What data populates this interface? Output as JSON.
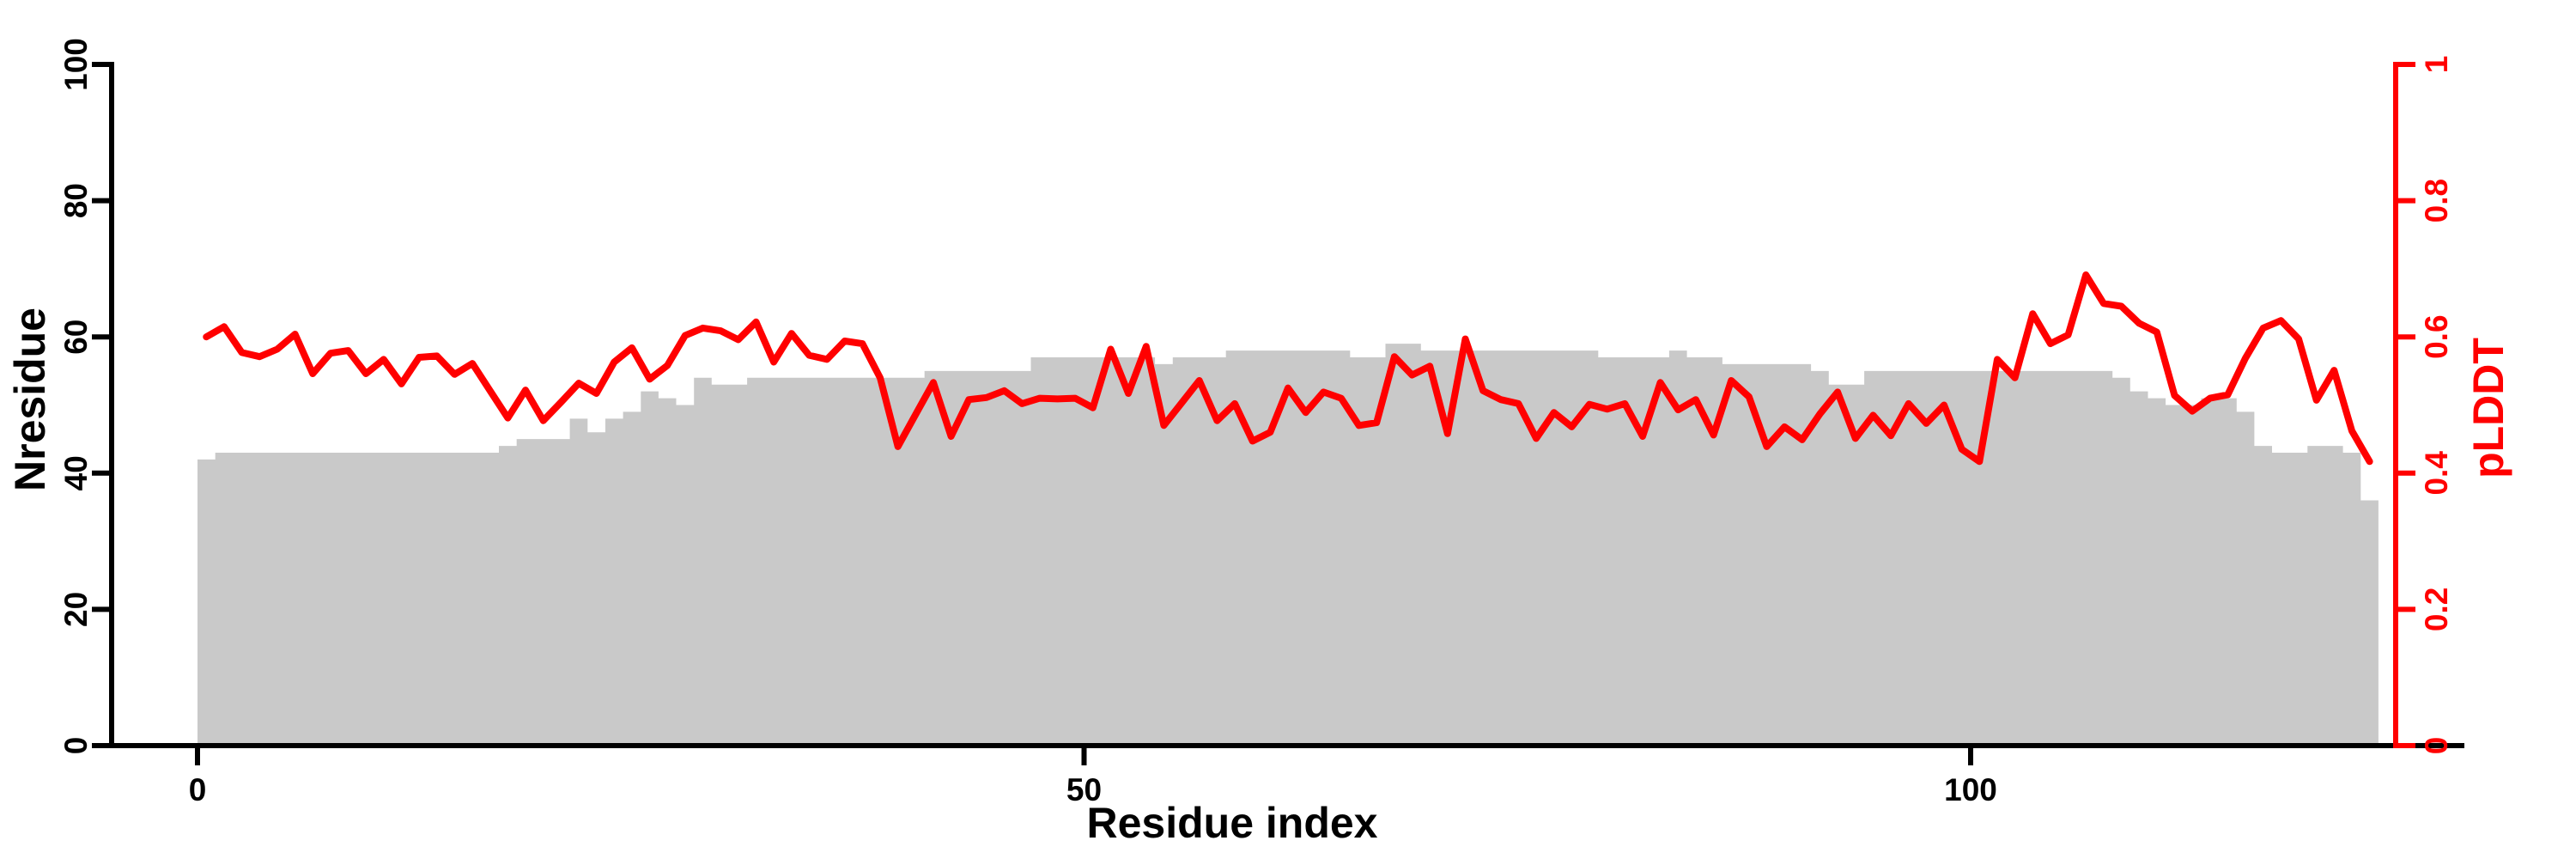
{
  "figure": {
    "background": "#ffffff"
  },
  "chart_data": {
    "type": "bar+line",
    "title": "",
    "grid": false,
    "legend": "none",
    "x_axis": {
      "label": "Residue index",
      "tick_values": [
        0,
        50,
        100
      ],
      "tick_labels": [
        "0",
        "50",
        "100"
      ],
      "color": "#000000"
    },
    "y_axis_left": {
      "label": "Nresidue",
      "tick_values": [
        0,
        20,
        40,
        60,
        80,
        100
      ],
      "tick_labels": [
        "0",
        "20",
        "40",
        "60",
        "80",
        "100"
      ],
      "range": [
        0,
        100
      ],
      "color": "#000000"
    },
    "y_axis_right": {
      "label": "pLDDT",
      "tick_values": [
        0,
        0.2,
        0.4,
        0.6,
        0.8,
        1
      ],
      "tick_labels": [
        "0",
        "0.2",
        "0.4",
        "0.6",
        "0.8",
        "1"
      ],
      "range": [
        0,
        1
      ],
      "color": "#ff0000"
    },
    "bar_series": {
      "name": "Nresidue",
      "axis": "left",
      "color": "#c9c9c9",
      "first_residue_index": 0,
      "values": [
        42,
        43,
        43,
        43,
        43,
        43,
        43,
        43,
        43,
        43,
        43,
        43,
        43,
        43,
        43,
        43,
        43,
        44,
        45,
        45,
        45,
        48,
        46,
        48,
        49,
        52,
        51,
        50,
        54,
        53,
        53,
        54,
        54,
        54,
        54,
        54,
        54,
        54,
        54,
        54,
        54,
        55,
        55,
        55,
        55,
        55,
        55,
        57,
        57,
        57,
        57,
        57,
        57,
        57,
        56,
        57,
        57,
        57,
        58,
        58,
        58,
        58,
        58,
        58,
        58,
        57,
        57,
        59,
        59,
        58,
        58,
        58,
        58,
        58,
        58,
        58,
        58,
        58,
        58,
        57,
        57,
        57,
        57,
        58,
        57,
        57,
        56,
        56,
        56,
        56,
        56,
        55,
        53,
        53,
        55,
        55,
        55,
        55,
        55,
        55,
        55,
        55,
        55,
        55,
        55,
        55,
        55,
        55,
        54,
        52,
        51,
        50,
        50,
        51,
        51,
        49,
        44,
        43,
        43,
        44,
        44,
        43,
        36
      ]
    },
    "line_series": {
      "name": "pLDDT",
      "axis": "right",
      "color": "#ff0000",
      "x_offset": 0.5,
      "values": [
        0.6,
        0.615,
        0.577,
        0.571,
        0.582,
        0.604,
        0.546,
        0.576,
        0.58,
        0.546,
        0.567,
        0.531,
        0.57,
        0.572,
        0.545,
        0.561,
        0.521,
        0.481,
        0.522,
        0.477,
        0.504,
        0.532,
        0.517,
        0.563,
        0.584,
        0.538,
        0.558,
        0.602,
        0.613,
        0.609,
        0.596,
        0.622,
        0.563,
        0.605,
        0.573,
        0.567,
        0.594,
        0.59,
        0.54,
        0.439,
        0.486,
        0.533,
        0.454,
        0.508,
        0.511,
        0.521,
        0.502,
        0.51,
        0.509,
        0.51,
        0.496,
        0.582,
        0.517,
        0.586,
        0.47,
        0.503,
        0.536,
        0.477,
        0.502,
        0.447,
        0.46,
        0.525,
        0.489,
        0.519,
        0.51,
        0.47,
        0.474,
        0.571,
        0.544,
        0.557,
        0.458,
        0.597,
        0.521,
        0.508,
        0.502,
        0.451,
        0.489,
        0.468,
        0.501,
        0.494,
        0.502,
        0.454,
        0.533,
        0.493,
        0.508,
        0.456,
        0.536,
        0.512,
        0.439,
        0.468,
        0.449,
        0.487,
        0.519,
        0.451,
        0.485,
        0.455,
        0.502,
        0.473,
        0.5,
        0.435,
        0.417,
        0.567,
        0.54,
        0.634,
        0.59,
        0.603,
        0.691,
        0.649,
        0.645,
        0.62,
        0.607,
        0.514,
        0.491,
        0.51,
        0.515,
        0.569,
        0.613,
        0.624,
        0.597,
        0.507,
        0.551,
        0.462,
        0.417
      ]
    }
  }
}
